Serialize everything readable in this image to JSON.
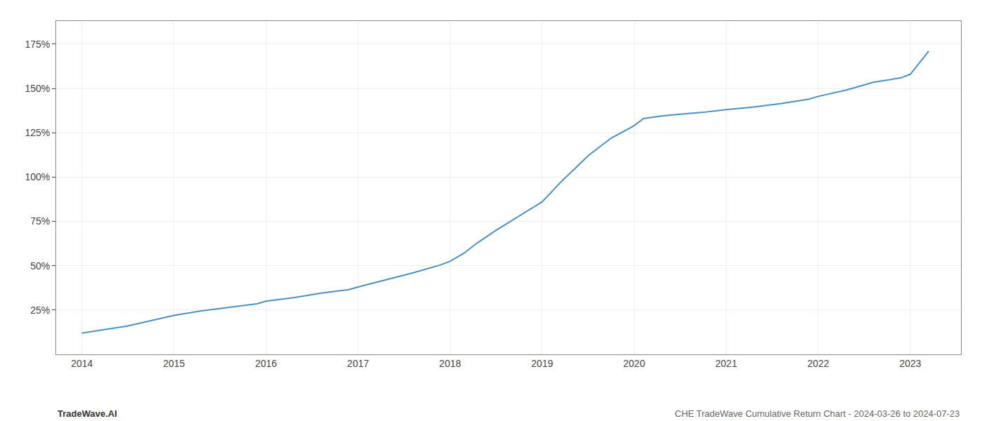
{
  "chart_data": {
    "type": "line",
    "annotations": [
      "TradeWave.AI",
      "CHE TradeWave Cumulative Return Chart - 2024-03-26 to 2024-07-23"
    ],
    "color": "#4a90c4",
    "x": [
      2014.0,
      2014.2,
      2014.5,
      2014.75,
      2015.0,
      2015.3,
      2015.6,
      2015.9,
      2016.0,
      2016.3,
      2016.6,
      2016.9,
      2017.0,
      2017.3,
      2017.6,
      2017.9,
      2018.0,
      2018.15,
      2018.3,
      2018.5,
      2018.75,
      2019.0,
      2019.2,
      2019.5,
      2019.75,
      2020.0,
      2020.1,
      2020.3,
      2020.5,
      2020.75,
      2021.0,
      2021.3,
      2021.6,
      2021.9,
      2022.0,
      2022.3,
      2022.6,
      2022.9,
      2023.0,
      2023.2
    ],
    "values": [
      12.0,
      13.5,
      16.0,
      19.0,
      22.0,
      24.5,
      26.5,
      28.5,
      30.0,
      32.0,
      34.5,
      36.5,
      38.0,
      42.0,
      46.0,
      50.5,
      52.5,
      57.0,
      63.0,
      70.0,
      78.0,
      86.0,
      97.0,
      112.0,
      122.0,
      129.0,
      133.0,
      134.5,
      135.5,
      136.5,
      138.0,
      139.5,
      141.5,
      144.0,
      145.5,
      149.0,
      153.5,
      156.0,
      158.0,
      171.0
    ],
    "xlim": [
      2013.72,
      2023.55
    ],
    "ylim": [
      0,
      188
    ],
    "xticks": [
      2014,
      2015,
      2016,
      2017,
      2018,
      2019,
      2020,
      2021,
      2022,
      2023
    ],
    "yticks": [
      {
        "value": 25,
        "label": "25%"
      },
      {
        "value": 50,
        "label": "50%"
      },
      {
        "value": 75,
        "label": "75%"
      },
      {
        "value": 100,
        "label": "100%"
      },
      {
        "value": 125,
        "label": "125%"
      },
      {
        "value": 150,
        "label": "150%"
      },
      {
        "value": 175,
        "label": "175%"
      }
    ],
    "grid": true
  }
}
